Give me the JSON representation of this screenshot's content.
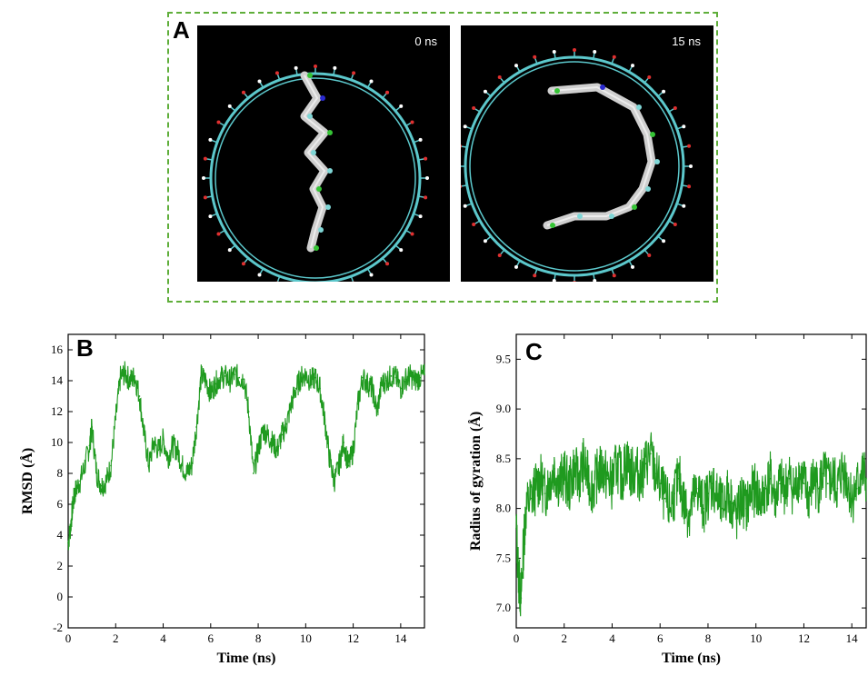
{
  "panel_letters": {
    "a": "A",
    "b": "B",
    "c": "C"
  },
  "snapshots": [
    {
      "time_label": "0 ns"
    },
    {
      "time_label": "15 ns"
    }
  ],
  "colors": {
    "series": "#1f9a1f",
    "frame": "#5fae3a",
    "ring": "#5cc8cc",
    "helix": "#cfcfcf",
    "helix_blue": "#2a2ad0",
    "helix_green": "#35c435"
  },
  "chart_data": [
    {
      "type": "line",
      "panel": "B",
      "xlabel": "Time (ns)",
      "ylabel": "RMSD (Å)",
      "xlim": [
        0,
        15
      ],
      "ylim": [
        -2,
        17
      ],
      "xticks": [
        0,
        2,
        4,
        6,
        8,
        10,
        12,
        14
      ],
      "yticks": [
        -2,
        0,
        2,
        4,
        6,
        8,
        10,
        12,
        14,
        16
      ],
      "series": [
        {
          "x": [
            0,
            0.1,
            0.2,
            0.3,
            0.5,
            0.7,
            0.9,
            1.0,
            1.2,
            1.4,
            1.6,
            1.8,
            2.0,
            2.2,
            2.4,
            2.6,
            2.8,
            3.0,
            3.2,
            3.4,
            3.6,
            3.8,
            4.0,
            4.2,
            4.4,
            4.6,
            4.8,
            5.0,
            5.2,
            5.4,
            5.6,
            5.8,
            6.0,
            6.2,
            6.4,
            6.6,
            6.8,
            7.0,
            7.2,
            7.4,
            7.6,
            7.8,
            8.0,
            8.2,
            8.4,
            8.6,
            8.8,
            9.0,
            9.2,
            9.4,
            9.6,
            9.8,
            10.0,
            10.2,
            10.4,
            10.6,
            10.8,
            11.0,
            11.2,
            11.4,
            11.6,
            11.8,
            12.0,
            12.2,
            12.4,
            12.6,
            12.8,
            13.0,
            13.2,
            13.4,
            13.6,
            13.8,
            14.0,
            14.2,
            14.4,
            14.6,
            14.8,
            15.0
          ],
          "y": [
            3.5,
            4.5,
            6.0,
            6.8,
            7.5,
            8.5,
            9.8,
            11.0,
            8.0,
            7.2,
            7.5,
            8.5,
            11.5,
            14.2,
            14.5,
            14.0,
            14.3,
            13.0,
            10.5,
            8.5,
            10.0,
            9.5,
            10.2,
            9.0,
            9.8,
            9.5,
            8.5,
            8.0,
            8.5,
            11.0,
            14.3,
            14.0,
            13.2,
            13.8,
            14.2,
            14.3,
            14.0,
            14.4,
            14.2,
            14.1,
            12.0,
            8.0,
            9.5,
            10.8,
            10.5,
            10.0,
            9.5,
            10.5,
            11.2,
            12.5,
            13.5,
            14.2,
            14.4,
            14.0,
            14.2,
            13.5,
            11.5,
            9.0,
            7.5,
            8.5,
            10.0,
            8.5,
            9.5,
            12.5,
            14.2,
            13.8,
            13.5,
            12.0,
            13.8,
            14.0,
            14.3,
            14.2,
            13.5,
            14.1,
            14.3,
            14.0,
            14.2,
            14.4
          ]
        }
      ]
    },
    {
      "type": "line",
      "panel": "C",
      "xlabel": "Time (ns)",
      "ylabel": "Radius of gyration (Å)",
      "xlim": [
        0,
        14.6
      ],
      "ylim": [
        6.8,
        9.75
      ],
      "xticks": [
        0,
        2,
        4,
        6,
        8,
        10,
        12,
        14
      ],
      "yticks": [
        7.0,
        7.5,
        8.0,
        8.5,
        9.0,
        9.5
      ],
      "series": [
        {
          "x": [
            0,
            0.1,
            0.2,
            0.3,
            0.4,
            0.6,
            0.8,
            1.0,
            1.2,
            1.4,
            1.6,
            1.8,
            2.0,
            2.2,
            2.4,
            2.6,
            2.8,
            3.0,
            3.2,
            3.4,
            3.6,
            3.8,
            4.0,
            4.2,
            4.4,
            4.6,
            4.8,
            5.0,
            5.2,
            5.4,
            5.6,
            5.8,
            6.0,
            6.2,
            6.4,
            6.6,
            6.8,
            7.0,
            7.2,
            7.4,
            7.6,
            7.8,
            8.0,
            8.2,
            8.4,
            8.6,
            8.8,
            9.0,
            9.2,
            9.4,
            9.6,
            9.8,
            10.0,
            10.2,
            10.4,
            10.6,
            10.8,
            11.0,
            11.2,
            11.4,
            11.6,
            11.8,
            12.0,
            12.2,
            12.4,
            12.6,
            12.8,
            13.0,
            13.2,
            13.4,
            13.6,
            13.8,
            14.0,
            14.2,
            14.4,
            14.6
          ],
          "y": [
            7.8,
            7.3,
            7.1,
            7.6,
            8.0,
            8.1,
            8.2,
            8.3,
            8.15,
            8.3,
            8.4,
            8.25,
            8.35,
            8.2,
            8.4,
            8.3,
            8.45,
            8.3,
            8.2,
            8.35,
            8.4,
            8.3,
            8.25,
            8.45,
            8.3,
            8.5,
            8.35,
            8.4,
            8.3,
            8.45,
            8.55,
            8.35,
            8.25,
            8.1,
            8.0,
            8.15,
            8.3,
            8.05,
            7.95,
            8.1,
            8.2,
            8.0,
            8.15,
            8.25,
            8.1,
            8.0,
            8.15,
            8.05,
            7.9,
            8.1,
            8.0,
            8.15,
            8.2,
            8.05,
            8.2,
            8.3,
            8.1,
            8.25,
            8.2,
            8.3,
            8.15,
            8.35,
            8.25,
            8.1,
            8.3,
            8.2,
            8.35,
            8.25,
            8.3,
            8.2,
            8.4,
            8.3,
            8.1,
            8.2,
            8.35,
            8.3
          ]
        }
      ]
    }
  ]
}
